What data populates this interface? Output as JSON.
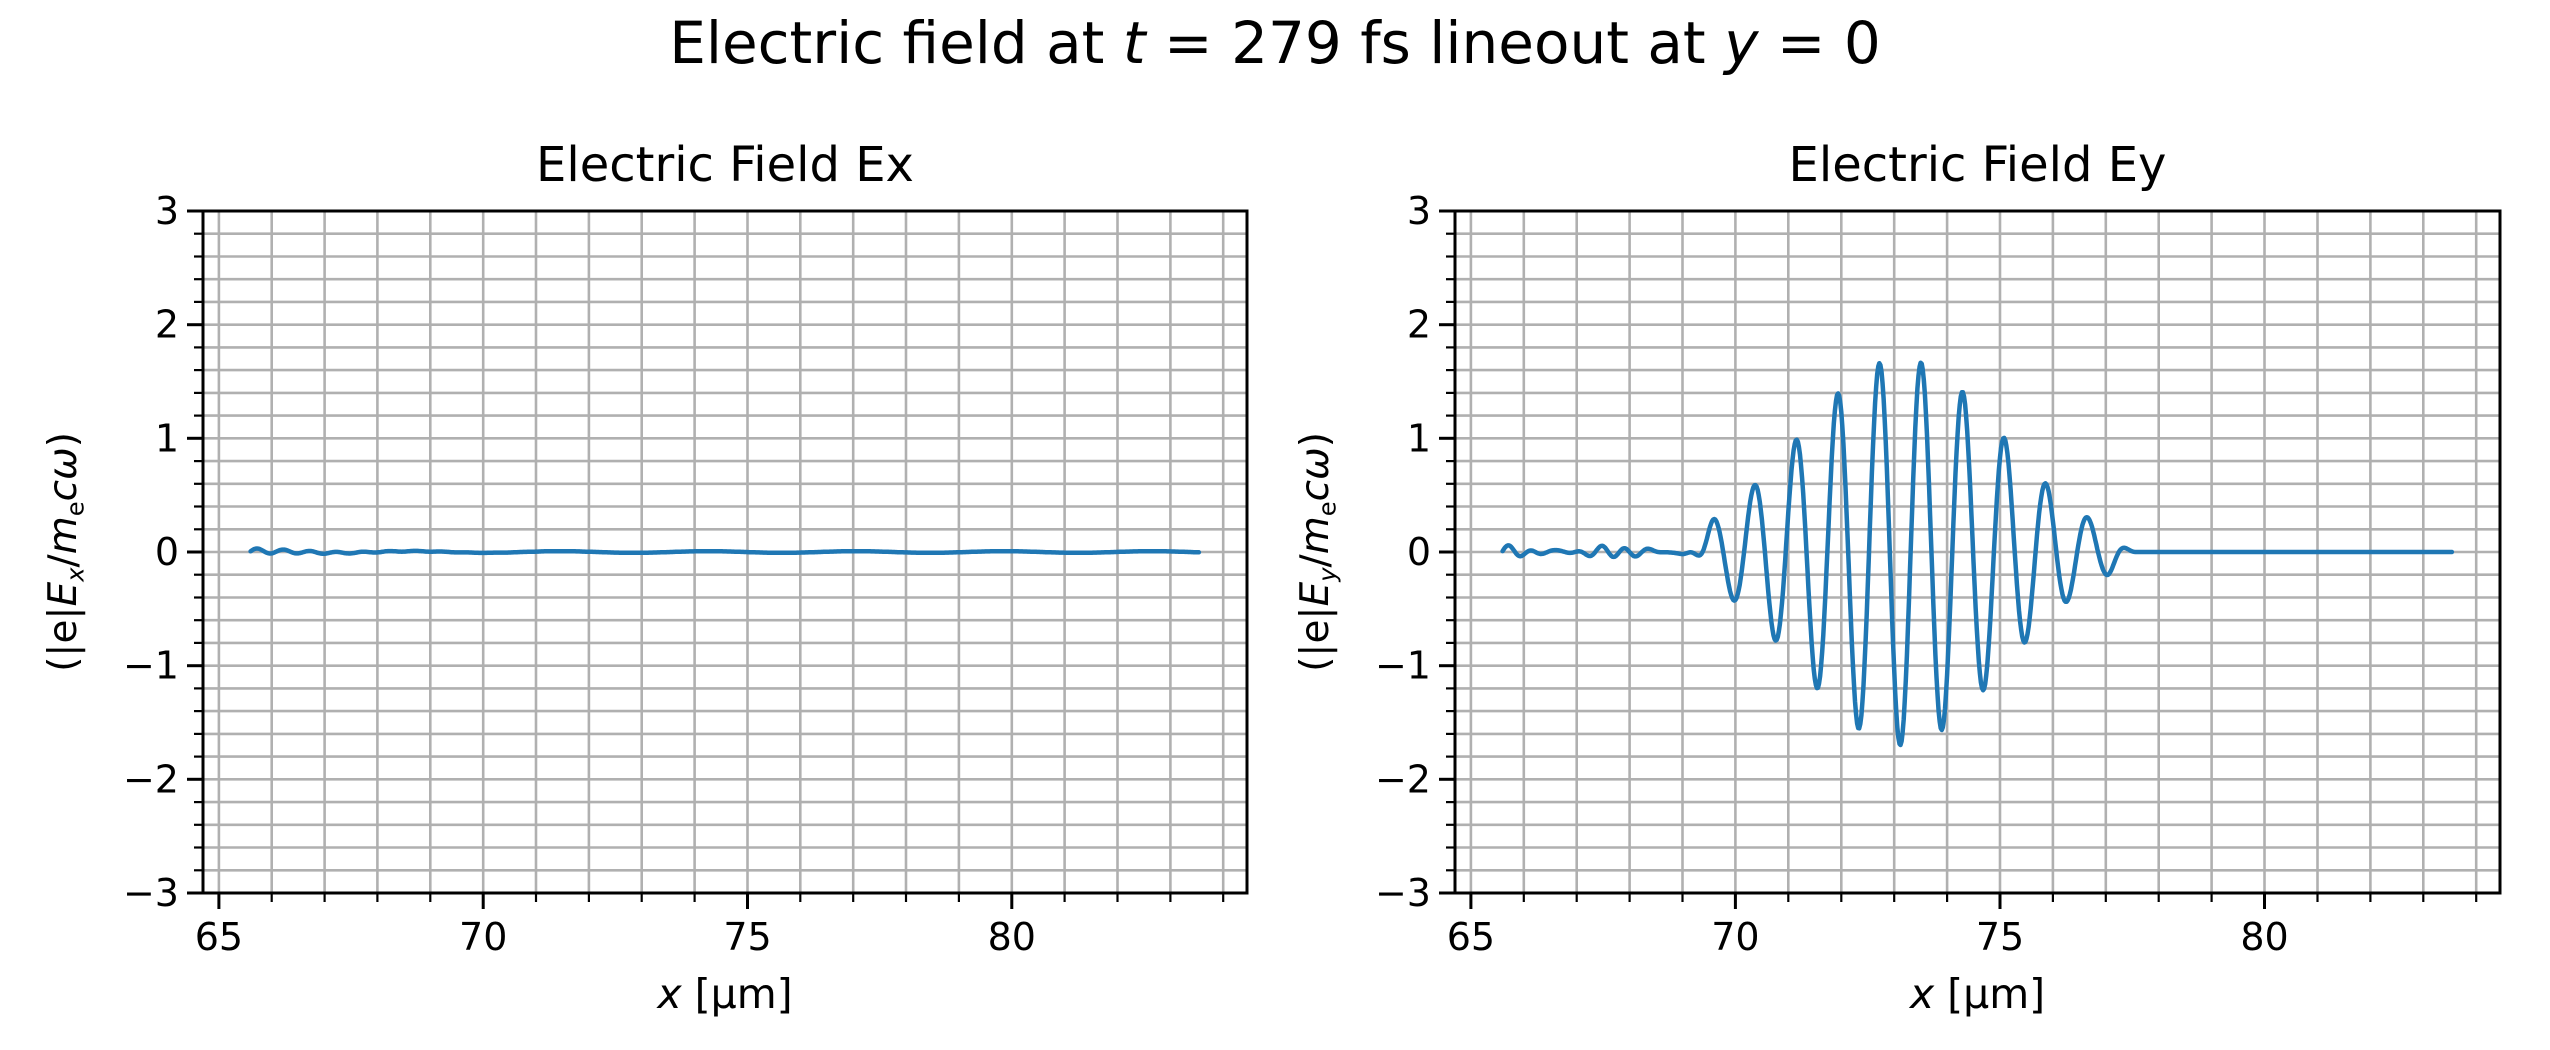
{
  "figure": {
    "suptitle": "Electric field at t = 279 fs lineout at y = 0",
    "suptitle_parts": [
      {
        "t": "Electric field at "
      },
      {
        "t": "t",
        "s": "italic"
      },
      {
        "t": " = 279 fs lineout at "
      },
      {
        "t": "y",
        "s": "italic"
      },
      {
        "t": " = 0"
      }
    ],
    "background_color": "#ffffff",
    "spine_color": "#000000",
    "grid_color": "#b0b0b0",
    "line_color": "#1f77b4"
  },
  "chart_data": [
    {
      "type": "line",
      "title": "Electric Field Ex",
      "xlabel": "x [μm]",
      "ylabel": "(|e|Ex/mecω)",
      "xlabel_parts": [
        {
          "t": "x",
          "s": "italic"
        },
        {
          "t": " [μm]"
        }
      ],
      "ylabel_parts": [
        {
          "t": "(|e|"
        },
        {
          "t": "E",
          "s": "italic"
        },
        {
          "t": "x",
          "s": "italic sub"
        },
        {
          "t": "/"
        },
        {
          "t": "m",
          "s": "italic"
        },
        {
          "t": "e",
          "s": "sub"
        },
        {
          "t": "c",
          "s": "italic"
        },
        {
          "t": "ω",
          "s": "italic"
        },
        {
          "t": ")"
        }
      ],
      "xlim": [
        64.7,
        84.45
      ],
      "ylim": [
        -3,
        3
      ],
      "x_major_ticks": [
        65,
        70,
        75,
        80
      ],
      "x_minor_step": 1,
      "y_major_ticks": [
        -3,
        -2,
        -1,
        0,
        1,
        2,
        3
      ],
      "y_minor_step": 0.2,
      "grid": "major+minor",
      "legend": "none",
      "line_color": "#1f77b4",
      "series": [
        {
          "name": "Ex",
          "x_start": 65.6,
          "x_end": 83.55,
          "x_step": 0.02,
          "description": "Essentially zero everywhere; tiny ripple (~0.03) near x=65.6-67.5 decaying to flat 0",
          "model": {
            "kind": "flat-noise",
            "base": 0,
            "ripple": {
              "amp": 0.026,
              "period": 0.5,
              "decay": 1.4
            },
            "drift": {
              "amp": 0.007,
              "period": 2.8,
              "phase": 1.0
            }
          }
        }
      ]
    },
    {
      "type": "line",
      "title": "Electric Field Ey",
      "xlabel": "x [μm]",
      "ylabel": "(|e|Ey/mecω)",
      "xlabel_parts": [
        {
          "t": "x",
          "s": "italic"
        },
        {
          "t": " [μm]"
        }
      ],
      "ylabel_parts": [
        {
          "t": "(|e|"
        },
        {
          "t": "E",
          "s": "italic"
        },
        {
          "t": "y",
          "s": "italic sub"
        },
        {
          "t": "/"
        },
        {
          "t": "m",
          "s": "italic"
        },
        {
          "t": "e",
          "s": "sub"
        },
        {
          "t": "c",
          "s": "italic"
        },
        {
          "t": "ω",
          "s": "italic"
        },
        {
          "t": ")"
        }
      ],
      "xlim": [
        64.7,
        84.45
      ],
      "ylim": [
        -3,
        3
      ],
      "x_major_ticks": [
        65,
        70,
        75,
        80
      ],
      "x_minor_step": 1,
      "y_major_ticks": [
        -3,
        -2,
        -1,
        0,
        1,
        2,
        3
      ],
      "y_minor_step": 0.2,
      "grid": "major+minor",
      "legend": "none",
      "line_color": "#1f77b4",
      "series": [
        {
          "name": "Ey",
          "x_start": 65.6,
          "x_end": 83.55,
          "x_step": 0.02,
          "description": "Laser wave packet: noise +/-0.05 for x<69.3, Gaussian-envelope oscillation peaking ~1.67 at x~73.1, wavelength ~0.79 um, flat 0 after x~77.5",
          "model": {
            "kind": "wave-packet",
            "amplitude": 1.7,
            "envelope_center": 73.13,
            "envelope_sigma": 1.9,
            "wavelength": 0.787,
            "phase_ref": 70.36,
            "rise_window": [
              69.05,
              69.65
            ],
            "cutoff_window": [
              77.0,
              77.58
            ],
            "noise": {
              "amp": 0.048,
              "period": 0.44,
              "mod_base": 0.55,
              "mod_period": 2.1,
              "amp2": 0.012,
              "period2": 0.9,
              "phase2": 0.7
            }
          },
          "peaks_x_v": [
            [
              70.36,
              0.63
            ],
            [
              71.15,
              1.05
            ],
            [
              71.94,
              1.42
            ],
            [
              72.74,
              1.66
            ],
            [
              73.52,
              1.66
            ],
            [
              74.31,
              1.45
            ],
            [
              75.11,
              1.05
            ],
            [
              75.9,
              0.6
            ],
            [
              76.66,
              0.32
            ]
          ],
          "troughs_x_v": [
            [
              69.96,
              -0.21
            ],
            [
              70.75,
              -0.56
            ],
            [
              71.54,
              -1.05
            ],
            [
              72.33,
              -1.48
            ],
            [
              73.12,
              -1.67
            ],
            [
              73.9,
              -1.52
            ],
            [
              74.69,
              -1.12
            ],
            [
              75.48,
              -0.62
            ],
            [
              76.27,
              -0.28
            ]
          ]
        }
      ]
    }
  ]
}
